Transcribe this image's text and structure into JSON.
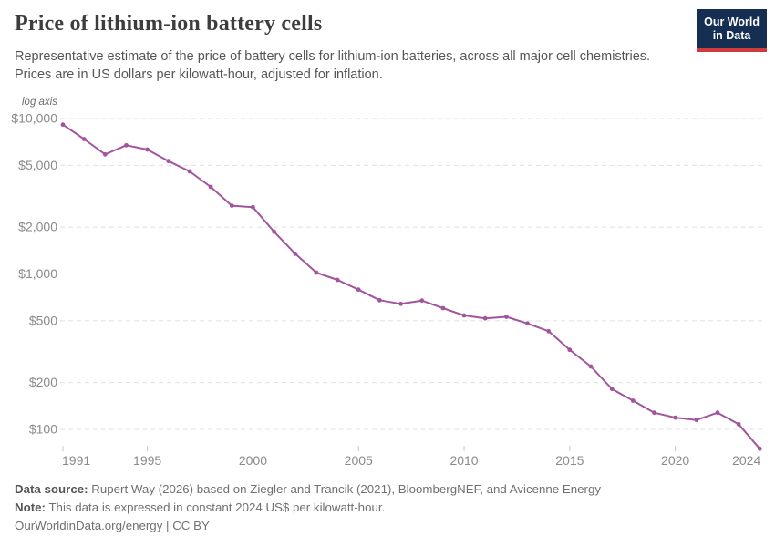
{
  "header": {
    "title": "Price of lithium-ion battery cells",
    "subtitle_line1": "Representative estimate of the price of battery cells for lithium-ion batteries, across all major cell chemistries.",
    "subtitle_line2": "Prices are in US dollars per kilowatt-hour, adjusted for inflation.",
    "logo_line1": "Our World",
    "logo_line2": "in Data"
  },
  "chart_data": {
    "type": "line",
    "title": "Price of lithium-ion battery cells",
    "scale": "log",
    "axis_note": "log axis",
    "grid": true,
    "legend": "none",
    "line_color": "#a2559c",
    "ylim": [
      75,
      10000
    ],
    "x": [
      1991,
      1992,
      1993,
      1994,
      1995,
      1996,
      1997,
      1998,
      1999,
      2000,
      2001,
      2002,
      2003,
      2004,
      2005,
      2006,
      2007,
      2008,
      2009,
      2010,
      2011,
      2012,
      2013,
      2014,
      2015,
      2016,
      2017,
      2018,
      2019,
      2020,
      2021,
      2022,
      2023,
      2024
    ],
    "series": [
      {
        "name": "Price of lithium-ion battery cells (US$ per kWh, constant 2024 US$)",
        "values": [
          9140,
          7380,
          5880,
          6730,
          6320,
          5320,
          4570,
          3630,
          2750,
          2690,
          1870,
          1350,
          1020,
          916,
          793,
          678,
          642,
          674,
          603,
          541,
          518,
          530,
          480,
          428,
          325,
          254,
          182,
          153,
          128,
          119,
          115,
          128,
          108,
          75
        ]
      }
    ],
    "y_ticks": [
      {
        "value": 10000,
        "label": "$10,000"
      },
      {
        "value": 5000,
        "label": "$5,000"
      },
      {
        "value": 2000,
        "label": "$2,000"
      },
      {
        "value": 1000,
        "label": "$1,000"
      },
      {
        "value": 500,
        "label": "$500"
      },
      {
        "value": 200,
        "label": "$200"
      },
      {
        "value": 100,
        "label": "$100"
      }
    ],
    "x_ticks": [
      {
        "value": 1991,
        "label": "1991"
      },
      {
        "value": 1995,
        "label": "1995"
      },
      {
        "value": 2000,
        "label": "2000"
      },
      {
        "value": 2005,
        "label": "2005"
      },
      {
        "value": 2010,
        "label": "2010"
      },
      {
        "value": 2015,
        "label": "2015"
      },
      {
        "value": 2020,
        "label": "2020"
      },
      {
        "value": 2024,
        "label": "2024"
      }
    ]
  },
  "colors": {
    "line": "#a2559c",
    "logo_bg": "#152e52",
    "logo_stripe": "#cf3b3c",
    "gridline": "#e0e0e0"
  },
  "footer": {
    "source_label": "Data source:",
    "source_text": " Rupert Way (2026) based on Ziegler and Trancik (2021), BloombergNEF, and Avicenne Energy",
    "note_label": "Note:",
    "note_text": " This data is expressed in constant 2024 US$ per kilowatt-hour.",
    "license_text": "OurWorldinData.org/energy | CC BY"
  }
}
